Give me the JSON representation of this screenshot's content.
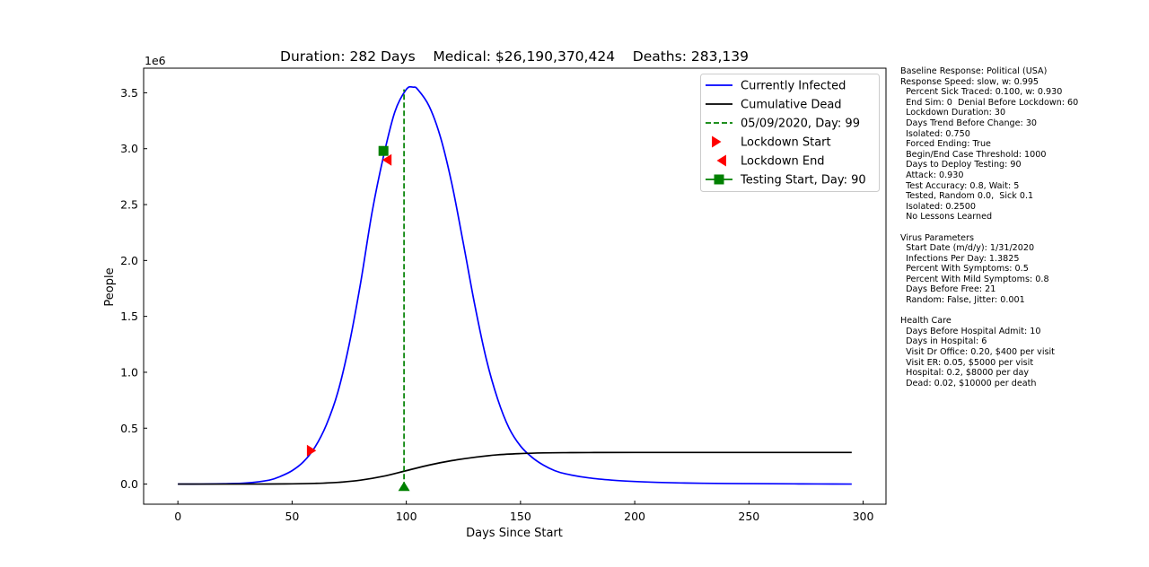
{
  "chart_data": {
    "type": "line",
    "title": "Duration: 282 Days    Medical: $26,190,370,424    Deaths: 283,139",
    "xlabel": "Days Since Start",
    "ylabel": "People",
    "y_offset_label": "1e6",
    "xlim": [
      -15,
      310
    ],
    "ylim": [
      -0.18,
      3.72
    ],
    "y_scale_note": "values in millions (axis multiplier 1e6)",
    "x_ticks": [
      0,
      50,
      100,
      150,
      200,
      250,
      300
    ],
    "y_ticks": [
      0.0,
      0.5,
      1.0,
      1.5,
      2.0,
      2.5,
      3.0,
      3.5
    ],
    "x_tick_labels": [
      "0",
      "50",
      "100",
      "150",
      "200",
      "250",
      "300"
    ],
    "y_tick_labels": [
      "0.0",
      "0.5",
      "1.0",
      "1.5",
      "2.0",
      "2.5",
      "3.0",
      "3.5"
    ],
    "grid": false,
    "legend_position": "top-right",
    "series": [
      {
        "name": "Currently Infected",
        "color": "#0000ff",
        "style": "solid",
        "x": [
          0,
          10,
          20,
          30,
          40,
          45,
          50,
          55,
          60,
          65,
          70,
          75,
          80,
          85,
          90,
          95,
          100,
          103,
          105,
          110,
          115,
          120,
          125,
          130,
          135,
          140,
          145,
          150,
          155,
          160,
          165,
          170,
          180,
          190,
          200,
          210,
          220,
          230,
          240,
          250,
          260,
          270,
          280,
          295
        ],
        "values": [
          0.0,
          0.0,
          0.003,
          0.01,
          0.035,
          0.07,
          0.12,
          0.2,
          0.33,
          0.53,
          0.82,
          1.25,
          1.8,
          2.43,
          2.93,
          3.33,
          3.53,
          3.55,
          3.53,
          3.38,
          3.1,
          2.68,
          2.15,
          1.6,
          1.12,
          0.76,
          0.5,
          0.34,
          0.24,
          0.17,
          0.12,
          0.09,
          0.055,
          0.035,
          0.023,
          0.015,
          0.01,
          0.007,
          0.005,
          0.004,
          0.003,
          0.002,
          0.001,
          0.0
        ]
      },
      {
        "name": "Cumulative Dead",
        "color": "#000000",
        "style": "solid",
        "x": [
          0,
          20,
          40,
          50,
          60,
          70,
          80,
          90,
          100,
          110,
          120,
          130,
          140,
          150,
          160,
          170,
          180,
          200,
          250,
          295
        ],
        "values": [
          0.0,
          0.0,
          0.0005,
          0.002,
          0.006,
          0.015,
          0.035,
          0.07,
          0.12,
          0.17,
          0.21,
          0.24,
          0.262,
          0.273,
          0.279,
          0.281,
          0.282,
          0.283,
          0.283,
          0.283
        ]
      },
      {
        "name": "05/09/2020, Day: 99",
        "color": "#008000",
        "style": "dashed-vertical",
        "x": [
          99,
          99
        ],
        "values": [
          -0.03,
          3.53
        ]
      },
      {
        "name": "Lockdown Start",
        "color": "#ff0000",
        "style": "marker-triangle-right",
        "x": [
          58
        ],
        "values": [
          0.3
        ]
      },
      {
        "name": "Lockdown End",
        "color": "#ff0000",
        "style": "marker-triangle-left",
        "x": [
          92
        ],
        "values": [
          2.9
        ]
      },
      {
        "name": "Testing Start, Day: 90",
        "color": "#008000",
        "style": "marker-square",
        "x": [
          90
        ],
        "values": [
          2.98
        ]
      }
    ],
    "extra_markers": [
      {
        "shape": "triangle-up",
        "color": "#008000",
        "x": 99,
        "y": -0.03
      }
    ]
  },
  "side_panel": {
    "lines": [
      "Baseline Response: Political (USA)",
      "Response Speed: slow, w: 0.995",
      "  Percent Sick Traced: 0.100, w: 0.930",
      "  End Sim: 0  Denial Before Lockdown: 60",
      "  Lockdown Duration: 30",
      "  Days Trend Before Change: 30",
      "  Isolated: 0.750",
      "  Forced Ending: True",
      "  Begin/End Case Threshold: 1000",
      "  Days to Deploy Testing: 90",
      "  Attack: 0.930",
      "  Test Accuracy: 0.8, Wait: 5",
      "  Tested, Random 0.0,  Sick 0.1",
      "  Isolated: 0.2500",
      "  No Lessons Learned",
      "",
      "Virus Parameters",
      "  Start Date (m/d/y): 1/31/2020",
      "  Infections Per Day: 1.3825",
      "  Percent With Symptoms: 0.5",
      "  Percent With Mild Symptoms: 0.8",
      "  Days Before Free: 21",
      "  Random: False, Jitter: 0.001",
      "",
      "Health Care",
      "  Days Before Hospital Admit: 10",
      "  Days in Hospital: 6",
      "  Visit Dr Office: 0.20, $400 per visit",
      "  Visit ER: 0.05, $5000 per visit",
      "  Hospital: 0.2, $8000 per day",
      "  Dead: 0.02, $10000 per death"
    ]
  }
}
